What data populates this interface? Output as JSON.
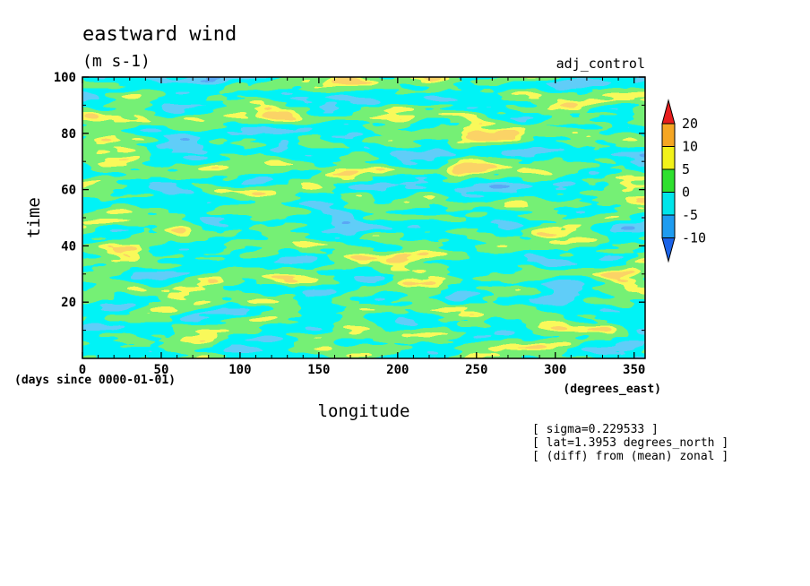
{
  "chart_data": {
    "type": "heatmap",
    "title": "eastward wind",
    "subtitle": "(m s-1)",
    "run_label": "adj_control",
    "xlabel": "longitude",
    "ylabel": "time",
    "x_units": "(degrees_east)",
    "y_units": "(days since 0000-01-01)",
    "xlim": [
      0,
      357
    ],
    "ylim": [
      0,
      100
    ],
    "xticks": [
      {
        "value": 0,
        "label": "0"
      },
      {
        "value": 50,
        "label": "50"
      },
      {
        "value": 100,
        "label": "100"
      },
      {
        "value": 150,
        "label": "150"
      },
      {
        "value": 200,
        "label": "200"
      },
      {
        "value": 250,
        "label": "250"
      },
      {
        "value": 300,
        "label": "300"
      },
      {
        "value": 350,
        "label": "350"
      }
    ],
    "yticks": [
      {
        "value": 20,
        "label": "20"
      },
      {
        "value": 40,
        "label": "40"
      },
      {
        "value": 60,
        "label": "60"
      },
      {
        "value": 80,
        "label": "80"
      },
      {
        "value": 100,
        "label": "100"
      }
    ],
    "colorbar": {
      "levels": [
        {
          "value": 20,
          "label": "20"
        },
        {
          "value": 10,
          "label": "10"
        },
        {
          "value": 5,
          "label": "5"
        },
        {
          "value": 0,
          "label": "0"
        },
        {
          "value": -5,
          "label": "-5"
        },
        {
          "value": -10,
          "label": "-10"
        }
      ],
      "colors": {
        "below_-10": "#1a63e8",
        "-10_to_-5": "#1e9cf0",
        "-5_to_0": "#00e5ea",
        "0_to_5": "#2ee02e",
        "5_to_10": "#f2f21a",
        "10_to_20": "#f5a623",
        "above_20": "#e81e1e"
      }
    },
    "annotations": [
      "[ sigma=0.229533 ]",
      "[ lat=1.3953 degrees_north ]",
      "[ (diff) from (mean) zonal ]"
    ]
  }
}
